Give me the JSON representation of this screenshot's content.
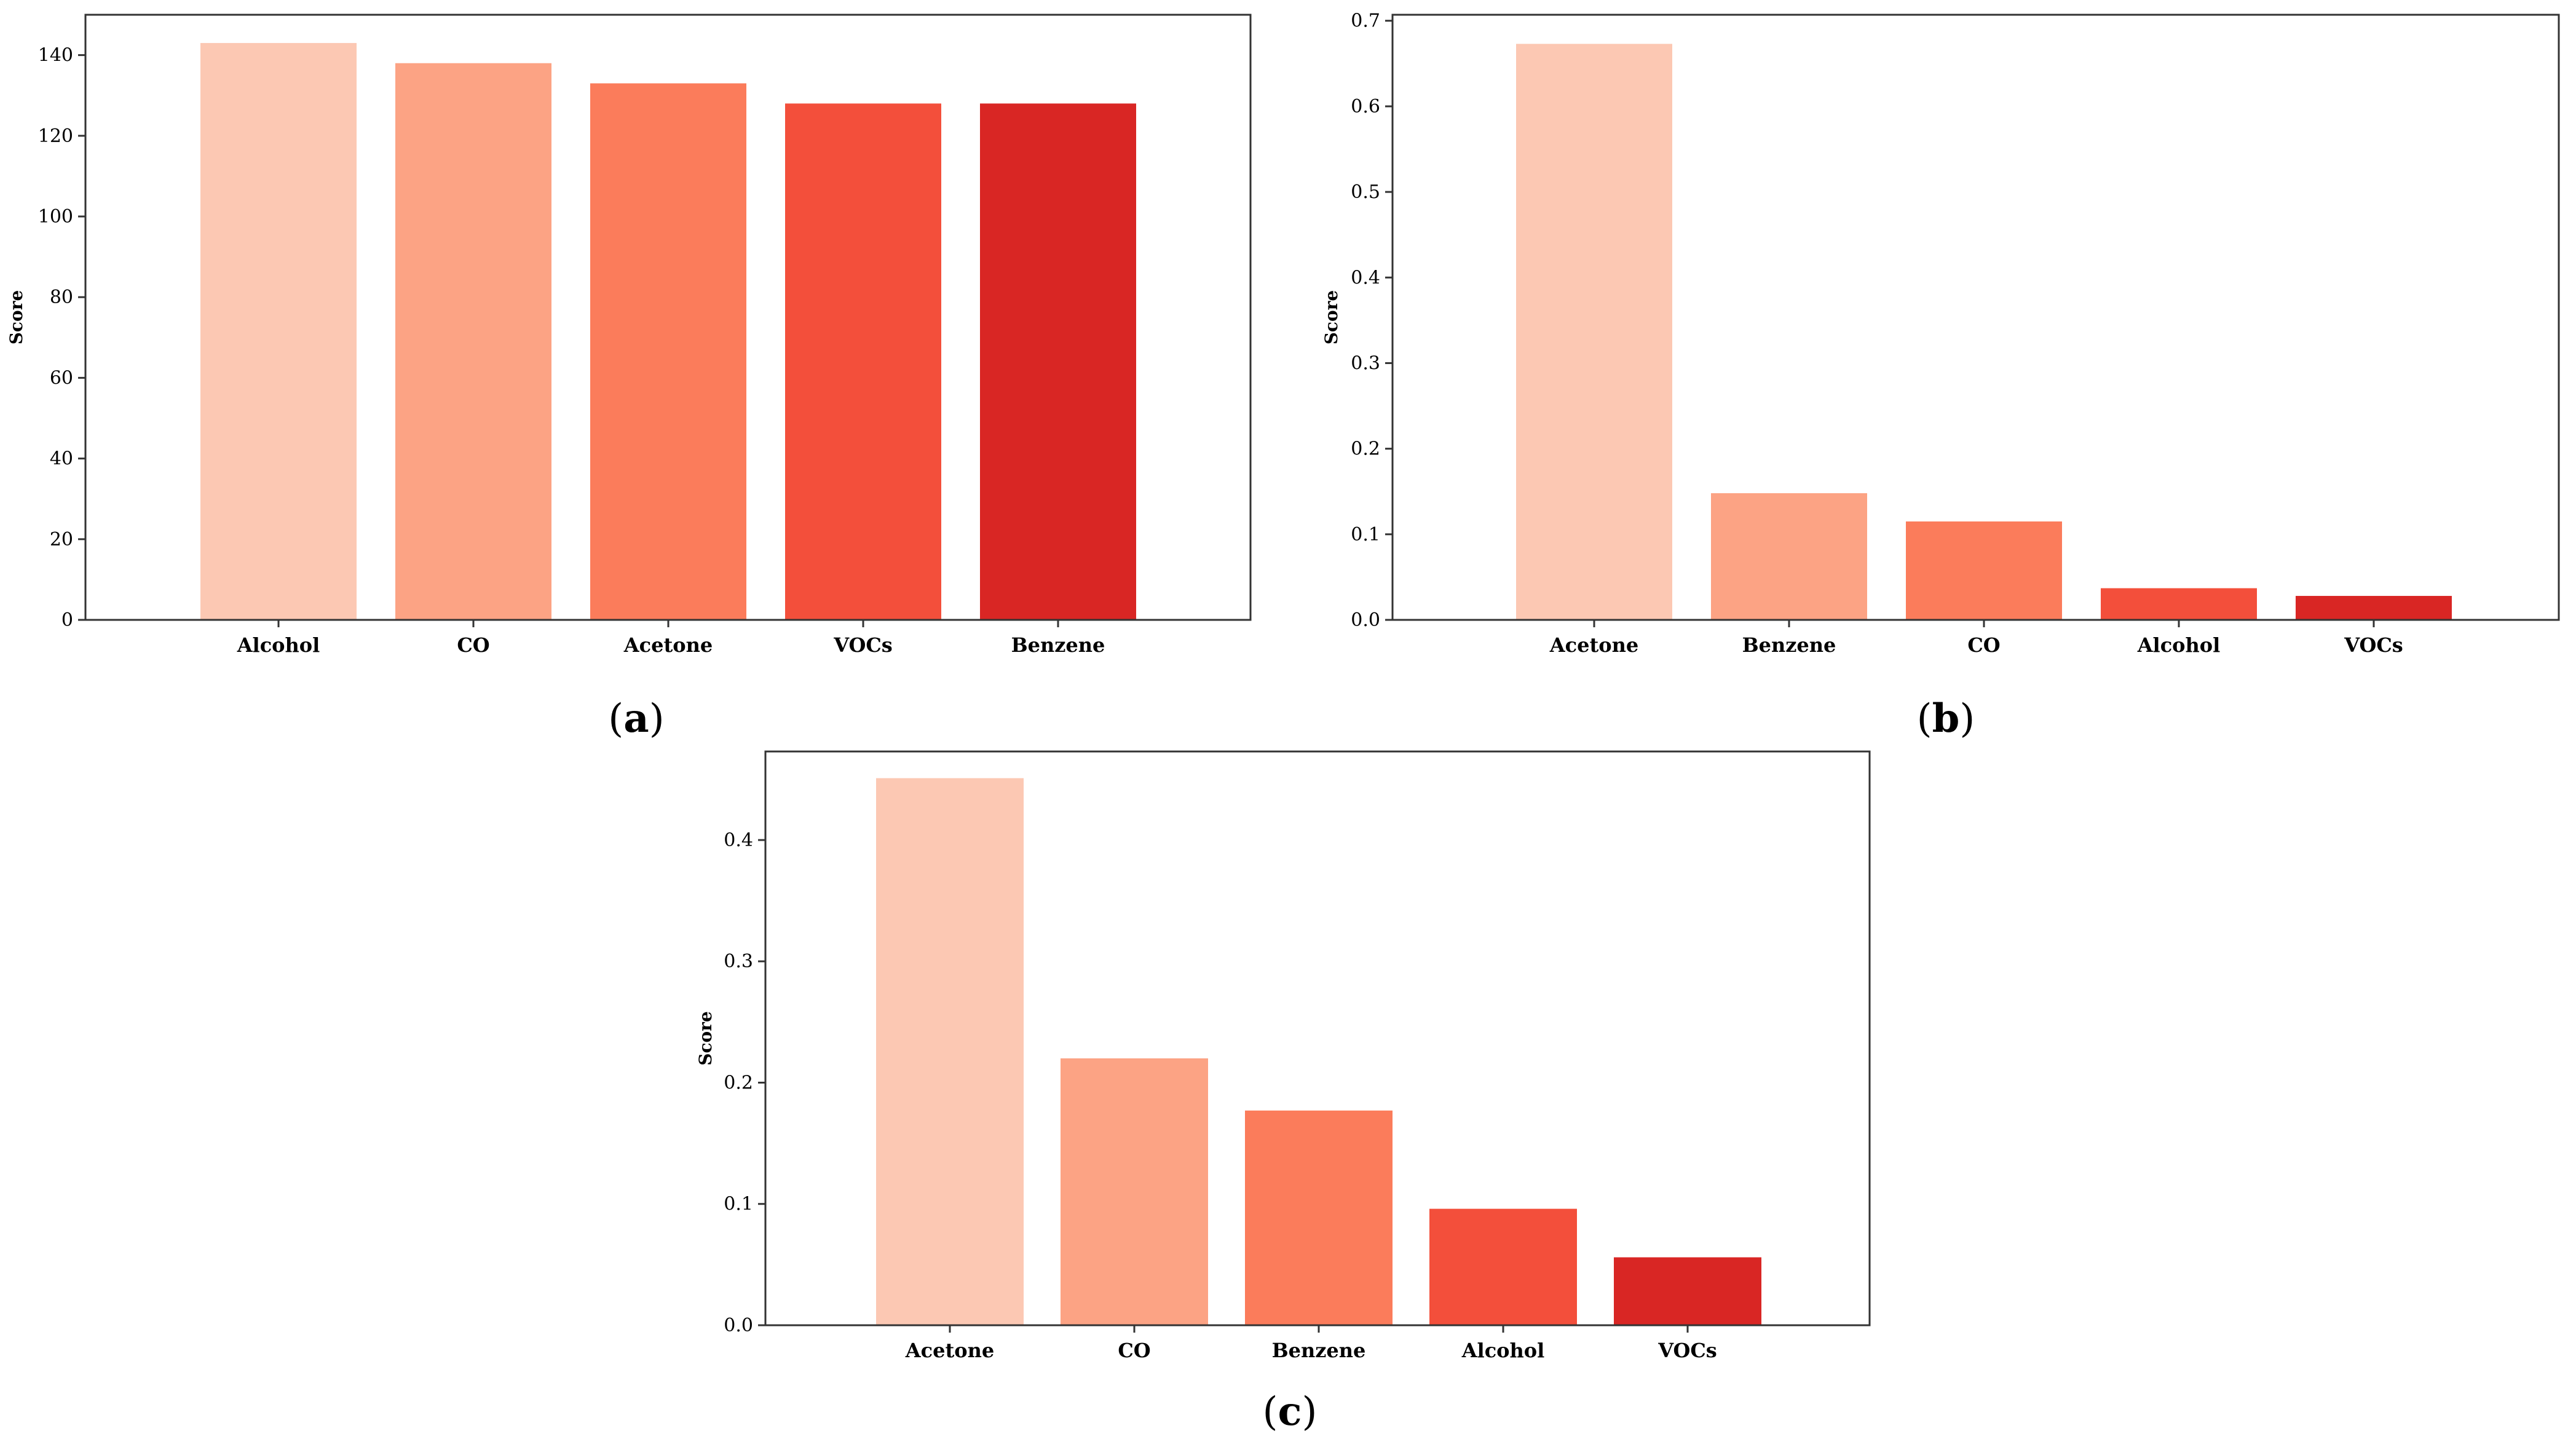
{
  "figure_labels": {
    "panel_a_open": "(",
    "panel_a_letter": "a",
    "panel_a_close": ")",
    "panel_b_open": "(",
    "panel_b_letter": "b",
    "panel_b_close": ")",
    "panel_c_open": "(",
    "panel_c_letter": "c",
    "panel_c_close": ")"
  },
  "chart_data": [
    {
      "type": "bar",
      "panel": "a",
      "title": "",
      "xlabel": "",
      "ylabel": "Score",
      "categories": [
        "Alcohol",
        "CO",
        "Acetone",
        "VOCs",
        "Benzene"
      ],
      "values": [
        143,
        138,
        133,
        128,
        128
      ],
      "colors": [
        "#fcc8b3",
        "#fca384",
        "#fb7c5b",
        "#f34f3b",
        "#d92624"
      ],
      "ylim": [
        0,
        150
      ],
      "yticks": [
        0,
        20,
        40,
        60,
        80,
        100,
        120,
        140
      ],
      "ytick_labels": [
        "0",
        "20",
        "40",
        "60",
        "80",
        "100",
        "120",
        "140"
      ],
      "grid": false,
      "legend": "none"
    },
    {
      "type": "bar",
      "panel": "b",
      "title": "",
      "xlabel": "",
      "ylabel": "Score",
      "categories": [
        "Acetone",
        "Benzene",
        "CO",
        "Alcohol",
        "VOCs"
      ],
      "values": [
        0.673,
        0.148,
        0.115,
        0.037,
        0.028
      ],
      "colors": [
        "#fcc8b3",
        "#fca384",
        "#fb7c5b",
        "#f34f3b",
        "#d92624"
      ],
      "ylim": [
        0,
        0.707
      ],
      "yticks": [
        0,
        0.1,
        0.2,
        0.3,
        0.4,
        0.5,
        0.6,
        0.7
      ],
      "ytick_labels": [
        "0.0",
        "0.1",
        "0.2",
        "0.3",
        "0.4",
        "0.5",
        "0.6",
        "0.7"
      ],
      "grid": false,
      "legend": "none"
    },
    {
      "type": "bar",
      "panel": "c",
      "title": "",
      "xlabel": "",
      "ylabel": "Score",
      "categories": [
        "Acetone",
        "CO",
        "Benzene",
        "Alcohol",
        "VOCs"
      ],
      "values": [
        0.451,
        0.22,
        0.177,
        0.096,
        0.056
      ],
      "colors": [
        "#fcc8b3",
        "#fca384",
        "#fb7c5b",
        "#f34f3b",
        "#d92624"
      ],
      "ylim": [
        0,
        0.473
      ],
      "yticks": [
        0,
        0.1,
        0.2,
        0.3,
        0.4
      ],
      "ytick_labels": [
        "0.0",
        "0.1",
        "0.2",
        "0.3",
        "0.4"
      ],
      "grid": false,
      "legend": "none"
    }
  ]
}
